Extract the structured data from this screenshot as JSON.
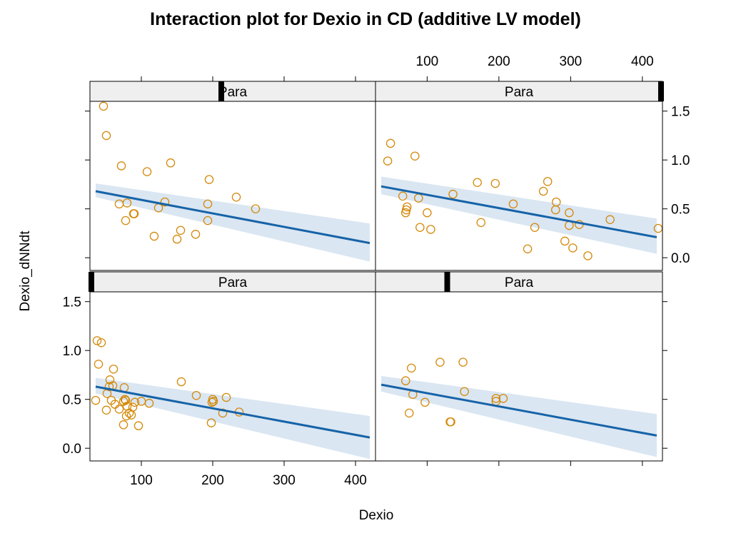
{
  "chart_data": {
    "type": "scatter",
    "title": "Interaction plot for Dexio in CD (additive LV model)",
    "xlabel": "Dexio",
    "ylabel": "Dexio_dNNdt",
    "xlim": [
      28,
      428
    ],
    "ylim": [
      -0.13,
      1.6
    ],
    "x_ticks": [
      100,
      200,
      300,
      400
    ],
    "y_ticks": [
      0.0,
      0.5,
      1.0,
      1.5
    ],
    "x_tick_labels": [
      "100",
      "200",
      "300",
      "400"
    ],
    "y_tick_labels": [
      "0.0",
      "0.5",
      "1.0",
      "1.5"
    ],
    "layout": "2x2 trellis",
    "colors": {
      "points": "#D4890A",
      "fit_line": "#1663A8",
      "band": "#DAE6F2",
      "strip": "#EFEFEF"
    },
    "panels": [
      {
        "strip": "Para",
        "strip_marker": 0.46,
        "points": [
          [
            47,
            1.55
          ],
          [
            51,
            1.25
          ],
          [
            72,
            0.94
          ],
          [
            108,
            0.88
          ],
          [
            141,
            0.97
          ],
          [
            195,
            0.8
          ],
          [
            69,
            0.55
          ],
          [
            80,
            0.56
          ],
          [
            78,
            0.38
          ],
          [
            90,
            0.45
          ],
          [
            89,
            0.45
          ],
          [
            118,
            0.22
          ],
          [
            124,
            0.51
          ],
          [
            133,
            0.57
          ],
          [
            150,
            0.19
          ],
          [
            155,
            0.28
          ],
          [
            176,
            0.24
          ],
          [
            193,
            0.55
          ],
          [
            193,
            0.38
          ],
          [
            233,
            0.62
          ],
          [
            260,
            0.5
          ]
        ],
        "fit": {
          "x": [
            36,
            420
          ],
          "y": [
            0.68,
            0.15
          ]
        },
        "band": {
          "x": [
            36,
            420
          ],
          "lower": [
            0.62,
            -0.04
          ],
          "upper": [
            0.76,
            0.35
          ]
        }
      },
      {
        "strip": "Para",
        "strip_marker": 0.995,
        "points": [
          [
            49,
            1.17
          ],
          [
            45,
            0.99
          ],
          [
            83,
            1.04
          ],
          [
            66,
            0.63
          ],
          [
            72,
            0.52
          ],
          [
            71,
            0.49
          ],
          [
            70,
            0.46
          ],
          [
            88,
            0.61
          ],
          [
            100,
            0.46
          ],
          [
            90,
            0.31
          ],
          [
            105,
            0.29
          ],
          [
            136,
            0.65
          ],
          [
            175,
            0.36
          ],
          [
            170,
            0.77
          ],
          [
            195,
            0.76
          ],
          [
            220,
            0.55
          ],
          [
            250,
            0.31
          ],
          [
            240,
            0.09
          ],
          [
            262,
            0.68
          ],
          [
            268,
            0.78
          ],
          [
            280,
            0.57
          ],
          [
            279,
            0.49
          ],
          [
            298,
            0.46
          ],
          [
            298,
            0.33
          ],
          [
            292,
            0.17
          ],
          [
            303,
            0.1
          ],
          [
            312,
            0.34
          ],
          [
            324,
            0.02
          ],
          [
            355,
            0.39
          ],
          [
            422,
            0.3
          ]
        ],
        "fit": {
          "x": [
            36,
            420
          ],
          "y": [
            0.73,
            0.21
          ]
        },
        "band": {
          "x": [
            36,
            420
          ],
          "lower": [
            0.65,
            0.04
          ],
          "upper": [
            0.83,
            0.4
          ]
        }
      },
      {
        "strip": "Para",
        "strip_marker": 0.005,
        "points": [
          [
            38,
            1.1
          ],
          [
            44,
            1.08
          ],
          [
            40,
            0.86
          ],
          [
            36,
            0.49
          ],
          [
            56,
            0.7
          ],
          [
            61,
            0.81
          ],
          [
            55,
            0.63
          ],
          [
            60,
            0.64
          ],
          [
            52,
            0.56
          ],
          [
            58,
            0.49
          ],
          [
            51,
            0.39
          ],
          [
            63,
            0.45
          ],
          [
            69,
            0.4
          ],
          [
            77,
            0.5
          ],
          [
            75,
            0.48
          ],
          [
            78,
            0.49
          ],
          [
            76,
            0.62
          ],
          [
            80,
            0.43
          ],
          [
            79,
            0.33
          ],
          [
            83,
            0.36
          ],
          [
            86,
            0.34
          ],
          [
            88,
            0.42
          ],
          [
            91,
            0.47
          ],
          [
            75,
            0.24
          ],
          [
            96,
            0.23
          ],
          [
            100,
            0.48
          ],
          [
            111,
            0.46
          ],
          [
            156,
            0.68
          ],
          [
            177,
            0.54
          ],
          [
            199,
            0.47
          ],
          [
            200,
            0.5
          ],
          [
            201,
            0.48
          ],
          [
            198,
            0.26
          ],
          [
            214,
            0.36
          ],
          [
            219,
            0.52
          ],
          [
            237,
            0.37
          ]
        ],
        "fit": {
          "x": [
            36,
            420
          ],
          "y": [
            0.63,
            0.11
          ]
        },
        "band": {
          "x": [
            36,
            420
          ],
          "lower": [
            0.56,
            -0.11
          ],
          "upper": [
            0.72,
            0.33
          ]
        }
      },
      {
        "strip": "Para",
        "strip_marker": 0.25,
        "points": [
          [
            70,
            0.69
          ],
          [
            78,
            0.82
          ],
          [
            80,
            0.55
          ],
          [
            75,
            0.36
          ],
          [
            97,
            0.47
          ],
          [
            118,
            0.88
          ],
          [
            133,
            0.27
          ],
          [
            132,
            0.27
          ],
          [
            150,
            0.88
          ],
          [
            152,
            0.58
          ],
          [
            196,
            0.48
          ],
          [
            196,
            0.51
          ],
          [
            206,
            0.51
          ]
        ],
        "fit": {
          "x": [
            36,
            420
          ],
          "y": [
            0.65,
            0.13
          ]
        },
        "band": {
          "x": [
            36,
            420
          ],
          "lower": [
            0.58,
            -0.09
          ],
          "upper": [
            0.74,
            0.35
          ]
        }
      }
    ]
  }
}
